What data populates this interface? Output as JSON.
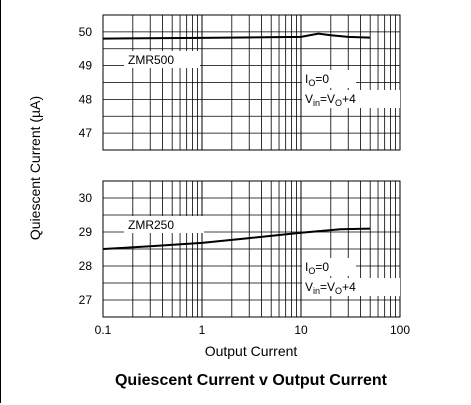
{
  "chart_data": {
    "type": "line",
    "title": "Quiescent Current v Output Current",
    "xlabel": "Output Current",
    "ylabel": "Quiescent Current (µA)",
    "x_scale": "log",
    "xlim": [
      0.1,
      100
    ],
    "x_tick_labels": [
      "0.1",
      "1",
      "10",
      "100"
    ],
    "grid": true,
    "panels": [
      {
        "ylim": [
          46.5,
          50.5
        ],
        "y_tick_labels": [
          "50",
          "49",
          "48",
          "47"
        ],
        "series": [
          {
            "name": "ZMR500",
            "x": [
              0.1,
              1,
              10,
              15,
              20,
              30,
              50
            ],
            "y": [
              49.8,
              49.82,
              49.85,
              49.95,
              49.9,
              49.85,
              49.83
            ]
          }
        ],
        "annotations": [
          "ZMR500",
          "IO=0",
          "Vin=VO+4"
        ]
      },
      {
        "ylim": [
          26.5,
          30.5
        ],
        "y_tick_labels": [
          "30",
          "29",
          "28",
          "27"
        ],
        "series": [
          {
            "name": "ZMR250",
            "x": [
              0.1,
              0.3,
              1,
              3,
              10,
              25,
              50
            ],
            "y": [
              28.5,
              28.58,
              28.68,
              28.82,
              28.98,
              29.08,
              29.1
            ]
          }
        ],
        "annotations": [
          "ZMR250",
          "IO=0",
          "Vin=VO+4"
        ]
      }
    ]
  }
}
